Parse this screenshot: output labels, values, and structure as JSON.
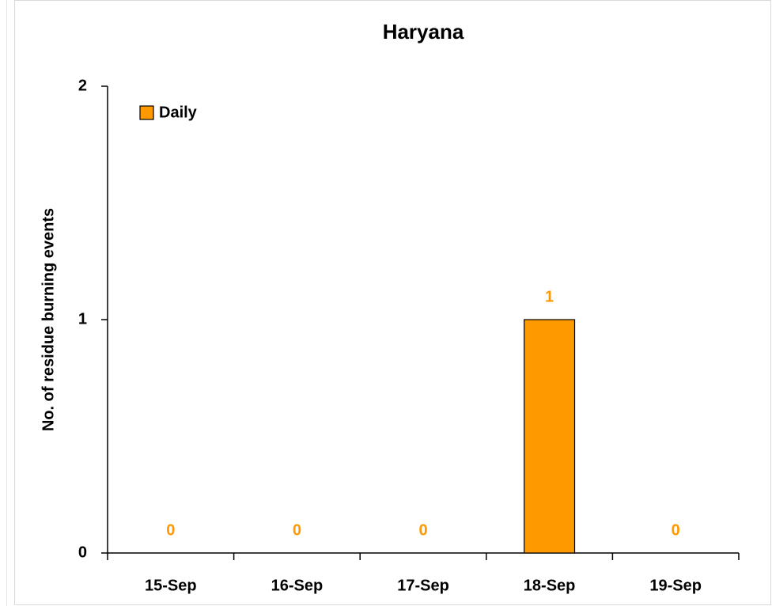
{
  "chart_data": {
    "type": "bar",
    "title": "Haryana",
    "y_label": "No. of residue burning events",
    "categories": [
      "15-Sep",
      "16-Sep",
      "17-Sep",
      "18-Sep",
      "19-Sep"
    ],
    "series": [
      {
        "name": "Daily",
        "color": "#FF9900",
        "values": [
          0,
          0,
          0,
          1,
          0
        ]
      }
    ],
    "ylim": [
      0,
      2
    ],
    "yticks": [
      0,
      1,
      2
    ],
    "grid": false,
    "legend": "top-left"
  }
}
